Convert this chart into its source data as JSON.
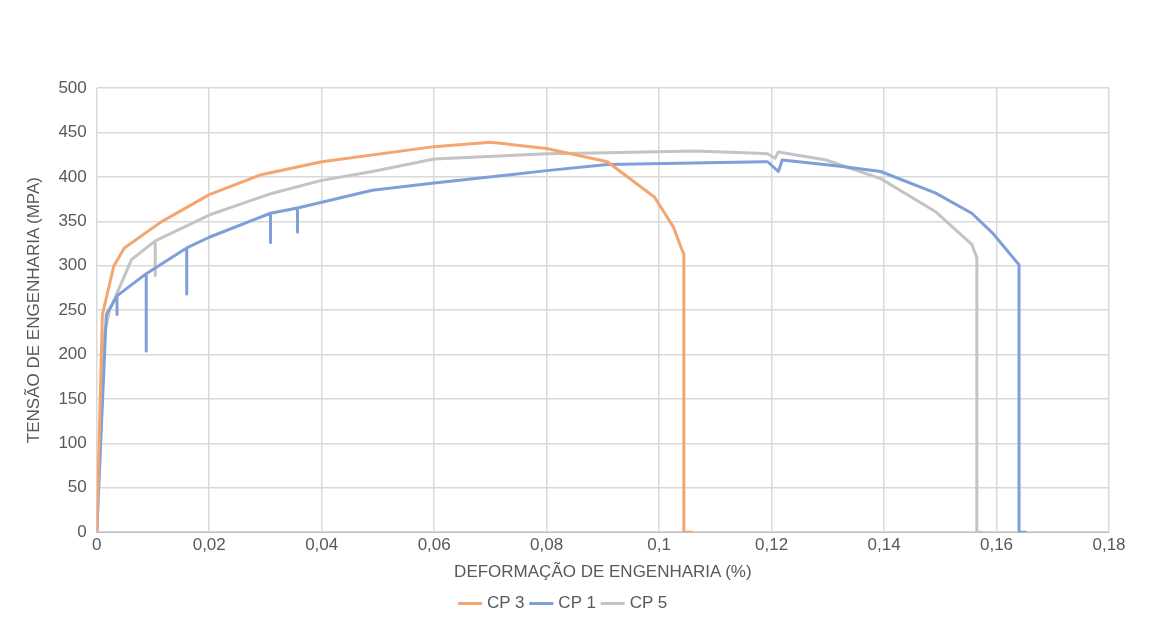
{
  "chart_data": {
    "type": "line",
    "xlabel": "DEFORMAÇÃO DE ENGENHARIA (%)",
    "ylabel": "TENSÃO DE ENGENHARIA (MPA)",
    "xlim": [
      0,
      0.18
    ],
    "xticks": [
      0,
      {
        "value": 0.02,
        "label": "0,02"
      },
      {
        "value": 0.04,
        "label": "0,04"
      },
      {
        "value": 0.06,
        "label": "0,06"
      },
      {
        "value": 0.08,
        "label": "0,08"
      },
      {
        "value": 0.1,
        "label": "0,1"
      },
      {
        "value": 0.12,
        "label": "0,12"
      },
      {
        "value": 0.14,
        "label": "0,14"
      },
      {
        "value": 0.16,
        "label": "0,16"
      },
      {
        "value": 0.18,
        "label": "0,18"
      }
    ],
    "ylim": [
      0,
      500
    ],
    "yticks": [
      0,
      50,
      100,
      150,
      200,
      250,
      300,
      350,
      400,
      450,
      500
    ],
    "grid": true,
    "legend": "bottom",
    "marker": "none",
    "line_style": "solid",
    "series": [
      {
        "name": "CP 3",
        "color": "#f4a671",
        "x": [
          0,
          0.001,
          0.003,
          0.0049,
          0.0114,
          0.02,
          0.029,
          0.04,
          0.06,
          0.07,
          0.08,
          0.0908,
          0.0992,
          0.1025,
          0.104,
          0.1044,
          0.1044,
          0.106
        ],
        "values": [
          0,
          245,
          299,
          320,
          349,
          380,
          402,
          417,
          434,
          439,
          432,
          417,
          377,
          344,
          319,
          313,
          0,
          0
        ]
      },
      {
        "name": "CP 1",
        "color": "#7f9fd9",
        "x": [
          0,
          0.0017,
          0.0036,
          0.0036,
          0.0036,
          0.0088,
          0.0088,
          0.0088,
          0.016,
          0.016,
          0.016,
          0.02,
          0.0309,
          0.0309,
          0.0309,
          0.0357,
          0.0357,
          0.0357,
          0.049,
          0.06,
          0.08,
          0.0908,
          0.1193,
          0.1212,
          0.1219,
          0.1322,
          0.1394,
          0.1491,
          0.1556,
          0.1594,
          0.164,
          0.164,
          0.1653
        ],
        "values": [
          0,
          245,
          266,
          245,
          266,
          291,
          204,
          291,
          320,
          268,
          320,
          332,
          359,
          326,
          359,
          365,
          338,
          365,
          385,
          393,
          407,
          414,
          417,
          406,
          419,
          412,
          406,
          382,
          359,
          336,
          301,
          0,
          0
        ]
      },
      {
        "name": "CP 5",
        "color": "#c4c4c4",
        "x": [
          0,
          0.0014,
          0.0023,
          0.0062,
          0.0104,
          0.0104,
          0.0104,
          0.02,
          0.0309,
          0.04,
          0.049,
          0.06,
          0.08,
          0.0908,
          0.1064,
          0.1193,
          0.1206,
          0.1212,
          0.1297,
          0.1394,
          0.1491,
          0.1556,
          0.1565,
          0.1565,
          0.1575
        ],
        "values": [
          0,
          225,
          250,
          307,
          328,
          289,
          328,
          357,
          381,
          396,
          406,
          420,
          426,
          427,
          429,
          426,
          421,
          428,
          419,
          398,
          361,
          324,
          309,
          0,
          0
        ]
      }
    ]
  }
}
